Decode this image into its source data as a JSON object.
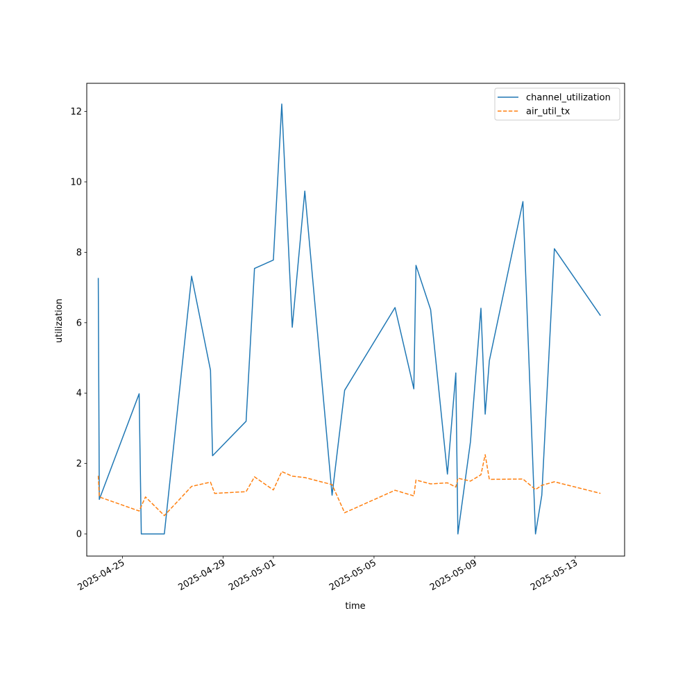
{
  "chart_data": {
    "type": "line",
    "title": "",
    "xlabel": "time",
    "ylabel": "utilization",
    "x_tick_labels": [
      "2025-04-25",
      "2025-04-29",
      "2025-05-01",
      "2025-05-05",
      "2025-05-09",
      "2025-05-13"
    ],
    "x_ticks": [
      "2025-04-25",
      "2025-04-29",
      "2025-05-01",
      "2025-05-05",
      "2025-05-09",
      "2025-05-13"
    ],
    "y_tick_labels": [
      "0",
      "2",
      "4",
      "6",
      "8",
      "10",
      "12"
    ],
    "y_ticks": [
      0,
      2,
      4,
      6,
      8,
      10,
      12
    ],
    "xlim": [
      "2025-04-23 14:00",
      "2025-05-14 23:00"
    ],
    "ylim": [
      -0.63,
      12.8
    ],
    "grid": false,
    "legend_position": "top-right",
    "series": [
      {
        "name": "channel_utilization",
        "color": "#1f77b4",
        "dash": "solid",
        "points": [
          [
            "2025-04-24 01:00",
            7.27
          ],
          [
            "2025-04-24 02:00",
            0.98
          ],
          [
            "2025-04-25 16:00",
            3.98
          ],
          [
            "2025-04-25 18:00",
            0.0
          ],
          [
            "2025-04-26 16:00",
            0.0
          ],
          [
            "2025-04-27 18:00",
            7.32
          ],
          [
            "2025-04-28 12:00",
            4.65
          ],
          [
            "2025-04-28 14:00",
            2.22
          ],
          [
            "2025-04-29 22:00",
            3.2
          ],
          [
            "2025-04-30 06:00",
            7.54
          ],
          [
            "2025-05-01 00:00",
            7.78
          ],
          [
            "2025-05-01 08:00",
            12.21
          ],
          [
            "2025-05-01 18:00",
            5.87
          ],
          [
            "2025-05-02 06:00",
            9.74
          ],
          [
            "2025-05-03 08:00",
            1.1
          ],
          [
            "2025-05-03 20:00",
            4.08
          ],
          [
            "2025-05-05 20:00",
            6.43
          ],
          [
            "2025-05-06 14:00",
            4.12
          ],
          [
            "2025-05-06 16:00",
            7.63
          ],
          [
            "2025-05-07 06:00",
            6.37
          ],
          [
            "2025-05-07 22:00",
            1.7
          ],
          [
            "2025-05-08 06:00",
            4.57
          ],
          [
            "2025-05-08 08:00",
            0.0
          ],
          [
            "2025-05-08 20:00",
            2.62
          ],
          [
            "2025-05-09 06:00",
            6.41
          ],
          [
            "2025-05-09 10:00",
            3.4
          ],
          [
            "2025-05-09 14:00",
            4.92
          ],
          [
            "2025-05-10 22:00",
            9.44
          ],
          [
            "2025-05-11 10:00",
            0.0
          ],
          [
            "2025-05-11 16:00",
            1.1
          ],
          [
            "2025-05-12 04:00",
            8.1
          ],
          [
            "2025-05-14 00:00",
            6.2
          ]
        ]
      },
      {
        "name": "air_util_tx",
        "color": "#ff7f0e",
        "dash": "dashed",
        "points": [
          [
            "2025-04-24 01:00",
            1.65
          ],
          [
            "2025-04-24 02:00",
            1.05
          ],
          [
            "2025-04-25 16:00",
            0.65
          ],
          [
            "2025-04-25 22:00",
            1.05
          ],
          [
            "2025-04-26 16:00",
            0.52
          ],
          [
            "2025-04-27 18:00",
            1.35
          ],
          [
            "2025-04-28 12:00",
            1.47
          ],
          [
            "2025-04-28 16:00",
            1.15
          ],
          [
            "2025-04-29 22:00",
            1.2
          ],
          [
            "2025-04-30 06:00",
            1.62
          ],
          [
            "2025-05-01 00:00",
            1.25
          ],
          [
            "2025-05-01 08:00",
            1.77
          ],
          [
            "2025-05-01 18:00",
            1.64
          ],
          [
            "2025-05-02 06:00",
            1.6
          ],
          [
            "2025-05-03 08:00",
            1.4
          ],
          [
            "2025-05-03 20:00",
            0.6
          ],
          [
            "2025-05-05 20:00",
            1.24
          ],
          [
            "2025-05-06 14:00",
            1.08
          ],
          [
            "2025-05-06 16:00",
            1.53
          ],
          [
            "2025-05-07 06:00",
            1.42
          ],
          [
            "2025-05-07 22:00",
            1.45
          ],
          [
            "2025-05-08 06:00",
            1.33
          ],
          [
            "2025-05-08 08:00",
            1.58
          ],
          [
            "2025-05-08 20:00",
            1.5
          ],
          [
            "2025-05-09 06:00",
            1.68
          ],
          [
            "2025-05-09 10:00",
            2.25
          ],
          [
            "2025-05-09 14:00",
            1.55
          ],
          [
            "2025-05-10 22:00",
            1.56
          ],
          [
            "2025-05-11 10:00",
            1.26
          ],
          [
            "2025-05-11 16:00",
            1.38
          ],
          [
            "2025-05-12 04:00",
            1.48
          ],
          [
            "2025-05-14 00:00",
            1.15
          ]
        ]
      }
    ]
  }
}
